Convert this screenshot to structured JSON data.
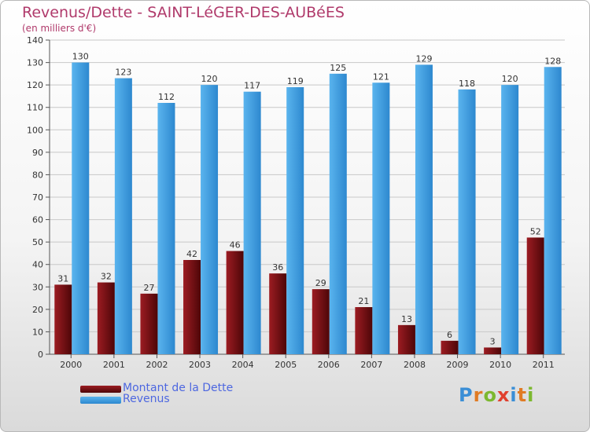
{
  "title": "Revenus/Dette - SAINT-LéGER-DES-AUBéES",
  "subtitle": "(en milliers d'€)",
  "logo": {
    "text": "Proxiti",
    "colors": [
      "#3a8ed6",
      "#e07b24",
      "#7cb82f",
      "#e0402d",
      "#3a8ed6",
      "#e07b24",
      "#7cb82f"
    ]
  },
  "colors": {
    "debt": "#7a1014",
    "revenue": "#4aa3e0",
    "grid": "#c8c8c8"
  },
  "chart_data": {
    "type": "bar",
    "categories": [
      "2000",
      "2001",
      "2002",
      "2003",
      "2004",
      "2005",
      "2006",
      "2007",
      "2008",
      "2009",
      "2010",
      "2011"
    ],
    "series": [
      {
        "name": "Montant de la Dette",
        "values": [
          31,
          32,
          27,
          42,
          46,
          36,
          29,
          21,
          13,
          6,
          3,
          52
        ]
      },
      {
        "name": "Revenus",
        "values": [
          130,
          123,
          112,
          120,
          117,
          119,
          125,
          121,
          129,
          118,
          120,
          128
        ]
      }
    ],
    "yticks": [
      "0",
      "10",
      "20",
      "30",
      "40",
      "50",
      "60",
      "70",
      "80",
      "90",
      "100",
      "110",
      "120",
      "130",
      "140"
    ],
    "ylim": [
      0,
      140
    ],
    "grid": true,
    "legend_position": "bottom-left"
  }
}
